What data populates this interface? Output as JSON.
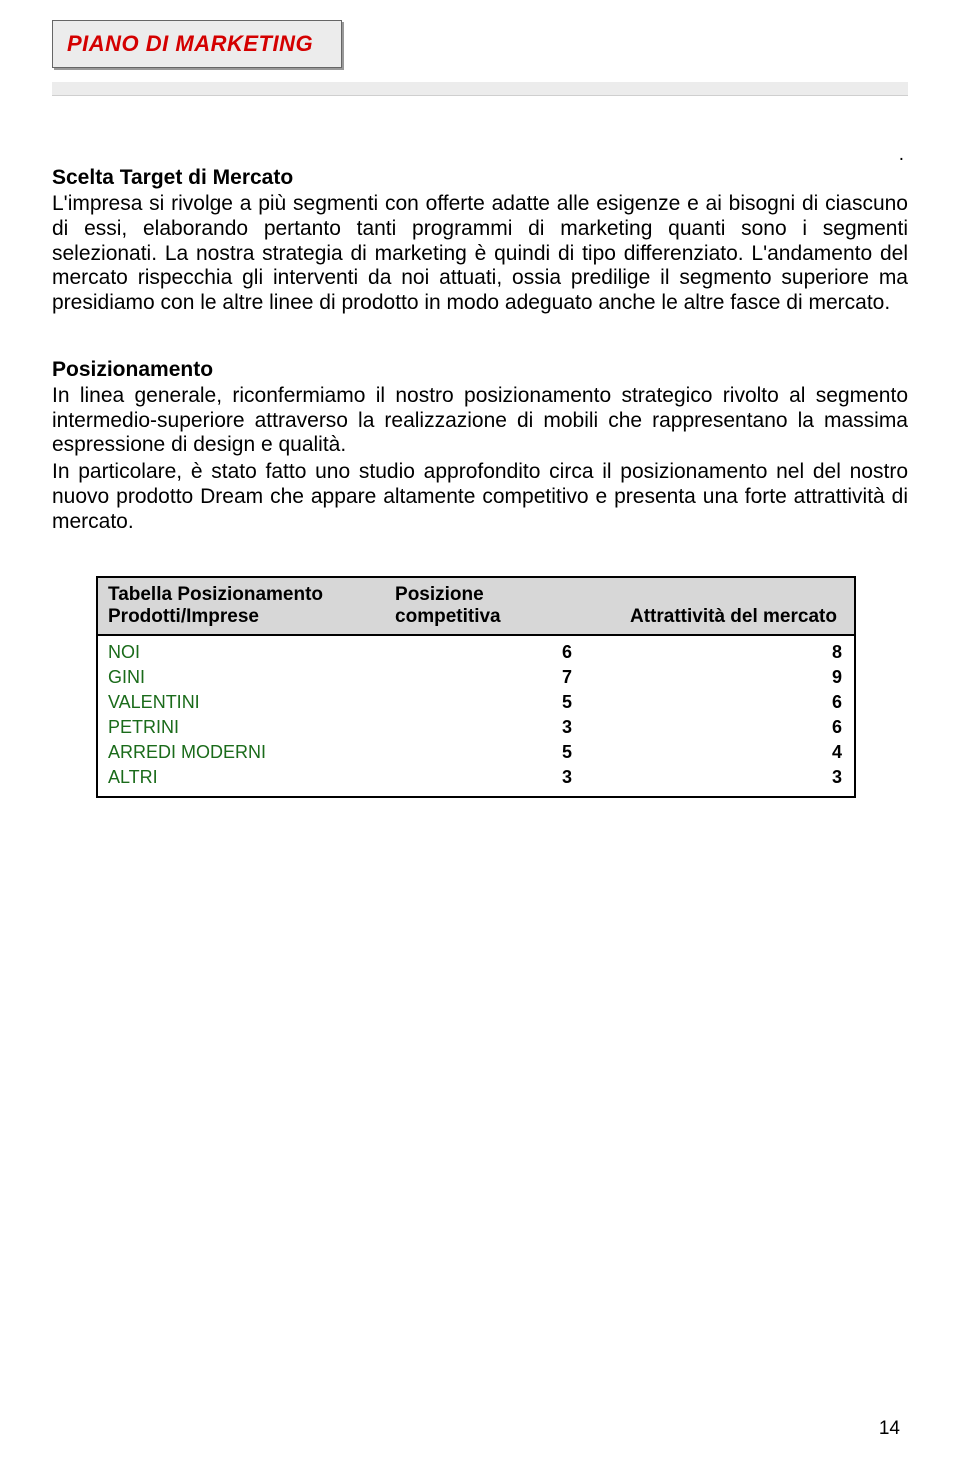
{
  "header": {
    "title": "PIANO DI MARKETING"
  },
  "dot": ".",
  "section1": {
    "heading": "Scelta Target di Mercato",
    "paragraph": "L'impresa si rivolge a più segmenti con offerte adatte alle esigenze e ai bisogni di ciascuno di essi, elaborando pertanto tanti programmi di marketing quanti sono i segmenti selezionati. La nostra strategia di marketing è quindi di tipo differenziato. L'andamento del mercato rispecchia gli interventi da noi attuati, ossia predilige il segmento superiore ma presidiamo con le altre linee di prodotto in modo adeguato anche le altre fasce di mercato."
  },
  "section2": {
    "heading": "Posizionamento",
    "paragraph1": "In linea generale, riconfermiamo il nostro posizionamento strategico rivolto al segmento intermedio-superiore attraverso la realizzazione di mobili che rappresentano la massima espressione di design e qualità.",
    "paragraph2": "In particolare, è stato fatto uno studio approfondito circa il posizionamento nel del nostro nuovo prodotto Dream che appare altamente competitivo e presenta una forte attrattività di mercato."
  },
  "table": {
    "header_col_a_line1": "Tabella Posizionamento",
    "header_col_a_line2": "Prodotti/Imprese",
    "header_col_b_line1": "Posizione",
    "header_col_b_line2": "competitiva",
    "header_col_c": "Attrattività del mercato",
    "rows": [
      {
        "company": "NOI",
        "pos": "6",
        "attr": "8"
      },
      {
        "company": "GINI",
        "pos": "7",
        "attr": "9"
      },
      {
        "company": "VALENTINI",
        "pos": "5",
        "attr": "6"
      },
      {
        "company": "PETRINI",
        "pos": "3",
        "attr": "6"
      },
      {
        "company": "ARREDI MODERNI",
        "pos": "5",
        "attr": "4"
      },
      {
        "company": "ALTRI",
        "pos": "3",
        "attr": "3"
      }
    ]
  },
  "page_number": "14",
  "colors": {
    "title_red": "#d40000",
    "box_bg": "#ececec",
    "table_header_bg": "#d7d7d7",
    "company_green": "#1a6b1a",
    "text_black": "#000000"
  }
}
